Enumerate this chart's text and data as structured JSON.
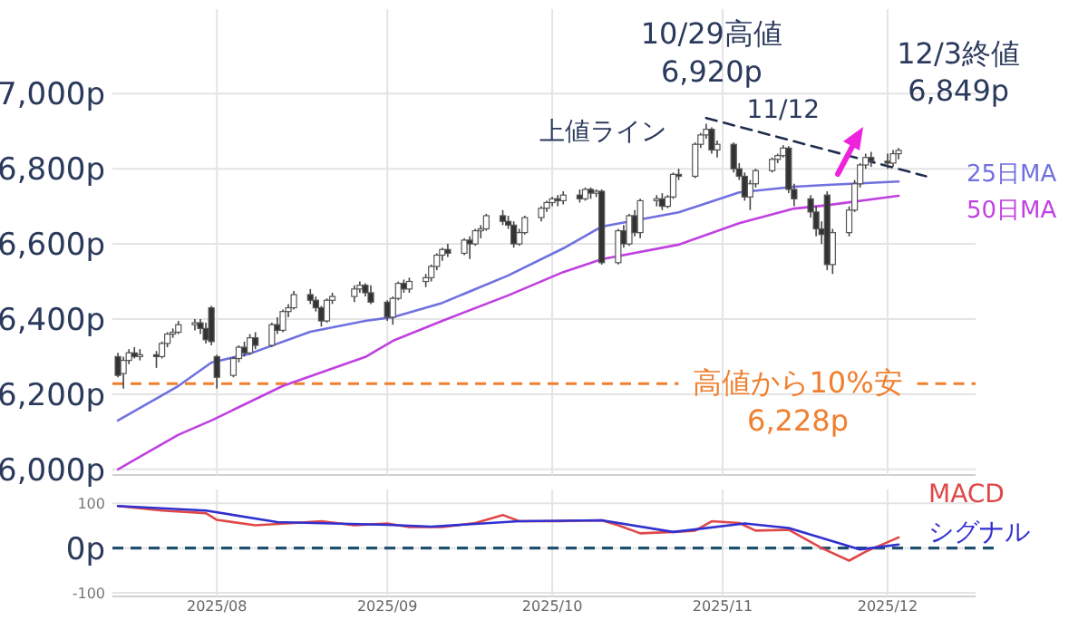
{
  "chart_data": [
    {
      "type": "candlestick",
      "x": [
        "2025-07-14",
        "2025-07-15",
        "2025-07-16",
        "2025-07-17",
        "2025-07-18",
        "2025-07-21",
        "2025-07-22",
        "2025-07-23",
        "2025-07-24",
        "2025-07-25",
        "2025-07-28",
        "2025-07-29",
        "2025-07-30",
        "2025-07-31",
        "2025-08-01",
        "2025-08-04",
        "2025-08-05",
        "2025-08-06",
        "2025-08-07",
        "2025-08-08",
        "2025-08-11",
        "2025-08-12",
        "2025-08-13",
        "2025-08-14",
        "2025-08-15",
        "2025-08-18",
        "2025-08-19",
        "2025-08-20",
        "2025-08-21",
        "2025-08-22",
        "2025-08-26",
        "2025-08-27",
        "2025-08-28",
        "2025-08-29",
        "2025-09-01",
        "2025-09-02",
        "2025-09-03",
        "2025-09-04",
        "2025-09-05",
        "2025-09-08",
        "2025-09-09",
        "2025-09-10",
        "2025-09-11",
        "2025-09-12",
        "2025-09-15",
        "2025-09-16",
        "2025-09-17",
        "2025-09-18",
        "2025-09-19",
        "2025-09-22",
        "2025-09-23",
        "2025-09-24",
        "2025-09-25",
        "2025-09-26",
        "2025-09-29",
        "2025-09-30",
        "2025-10-01",
        "2025-10-02",
        "2025-10-03",
        "2025-10-06",
        "2025-10-07",
        "2025-10-08",
        "2025-10-09",
        "2025-10-10",
        "2025-10-13",
        "2025-10-14",
        "2025-10-15",
        "2025-10-16",
        "2025-10-17",
        "2025-10-20",
        "2025-10-21",
        "2025-10-22",
        "2025-10-23",
        "2025-10-24",
        "2025-10-27",
        "2025-10-28",
        "2025-10-29",
        "2025-10-30",
        "2025-10-31",
        "2025-11-03",
        "2025-11-04",
        "2025-11-05",
        "2025-11-06",
        "2025-11-07",
        "2025-11-10",
        "2025-11-11",
        "2025-11-12",
        "2025-11-13",
        "2025-11-14",
        "2025-11-17",
        "2025-11-18",
        "2025-11-19",
        "2025-11-20",
        "2025-11-21",
        "2025-11-24",
        "2025-11-25",
        "2025-11-26",
        "2025-11-27",
        "2025-11-28",
        "2025-12-01",
        "2025-12-02",
        "2025-12-03"
      ],
      "ohlc": [
        [
          6300,
          6310,
          6245,
          6250
        ],
        [
          6255,
          6300,
          6215,
          6290
        ],
        [
          6290,
          6320,
          6280,
          6310
        ],
        [
          6310,
          6325,
          6295,
          6300
        ],
        [
          6300,
          6320,
          6290,
          6305
        ],
        [
          6305,
          6315,
          6270,
          6300
        ],
        [
          6300,
          6340,
          6295,
          6335
        ],
        [
          6335,
          6365,
          6325,
          6360
        ],
        [
          6360,
          6375,
          6350,
          6365
        ],
        [
          6365,
          6395,
          6360,
          6385
        ],
        [
          6385,
          6400,
          6370,
          6390
        ],
        [
          6390,
          6400,
          6360,
          6375
        ],
        [
          6375,
          6390,
          6335,
          6345
        ],
        [
          6430,
          6435,
          6330,
          6340
        ],
        [
          6300,
          6305,
          6215,
          6245
        ],
        [
          6250,
          6300,
          6245,
          6295
        ],
        [
          6295,
          6330,
          6285,
          6325
        ],
        [
          6325,
          6340,
          6300,
          6310
        ],
        [
          6310,
          6360,
          6305,
          6350
        ],
        [
          6350,
          6365,
          6320,
          6330
        ],
        [
          6330,
          6390,
          6325,
          6385
        ],
        [
          6385,
          6405,
          6360,
          6370
        ],
        [
          6370,
          6425,
          6365,
          6420
        ],
        [
          6420,
          6440,
          6405,
          6430
        ],
        [
          6430,
          6475,
          6425,
          6465
        ],
        [
          6465,
          6480,
          6440,
          6450
        ],
        [
          6450,
          6460,
          6420,
          6430
        ],
        [
          6430,
          6435,
          6380,
          6395
        ],
        [
          6395,
          6455,
          6390,
          6450
        ],
        [
          6450,
          6470,
          6440,
          6460
        ],
        [
          6460,
          6490,
          6445,
          6480
        ],
        [
          6480,
          6500,
          6470,
          6490
        ],
        [
          6490,
          6495,
          6460,
          6470
        ],
        [
          6470,
          6490,
          6440,
          6445
        ],
        [
          6445,
          6450,
          6395,
          6405
        ],
        [
          6405,
          6460,
          6385,
          6455
        ],
        [
          6455,
          6500,
          6450,
          6495
        ],
        [
          6495,
          6505,
          6470,
          6480
        ],
        [
          6480,
          6510,
          6470,
          6500
        ],
        [
          6500,
          6520,
          6485,
          6510
        ],
        [
          6510,
          6545,
          6500,
          6540
        ],
        [
          6540,
          6575,
          6530,
          6570
        ],
        [
          6570,
          6590,
          6555,
          6585
        ],
        [
          6585,
          6600,
          6565,
          6575
        ],
        [
          6575,
          6615,
          6570,
          6610
        ],
        [
          6610,
          6620,
          6560,
          6600
        ],
        [
          6600,
          6640,
          6595,
          6635
        ],
        [
          6635,
          6650,
          6615,
          6640
        ],
        [
          6640,
          6680,
          6635,
          6675
        ],
        [
          6675,
          6690,
          6650,
          6660
        ],
        [
          6660,
          6675,
          6640,
          6650
        ],
        [
          6650,
          6660,
          6590,
          6600
        ],
        [
          6600,
          6640,
          6595,
          6630
        ],
        [
          6630,
          6675,
          6625,
          6670
        ],
        [
          6670,
          6700,
          6660,
          6695
        ],
        [
          6695,
          6715,
          6685,
          6710
        ],
        [
          6710,
          6725,
          6700,
          6720
        ],
        [
          6720,
          6730,
          6700,
          6715
        ],
        [
          6715,
          6740,
          6705,
          6730
        ],
        [
          6730,
          6745,
          6710,
          6720
        ],
        [
          6720,
          6750,
          6715,
          6745
        ],
        [
          6745,
          6750,
          6720,
          6735
        ],
        [
          6735,
          6745,
          6725,
          6740
        ],
        [
          6740,
          6745,
          6545,
          6550
        ],
        [
          6550,
          6640,
          6545,
          6635
        ],
        [
          6635,
          6650,
          6590,
          6600
        ],
        [
          6600,
          6680,
          6595,
          6675
        ],
        [
          6675,
          6690,
          6620,
          6630
        ],
        [
          6630,
          6720,
          6615,
          6715
        ],
        [
          6715,
          6730,
          6700,
          6720
        ],
        [
          6720,
          6735,
          6690,
          6700
        ],
        [
          6700,
          6730,
          6695,
          6725
        ],
        [
          6725,
          6790,
          6720,
          6785
        ],
        [
          6785,
          6800,
          6770,
          6780
        ],
        [
          6780,
          6870,
          6775,
          6865
        ],
        [
          6865,
          6895,
          6855,
          6890
        ],
        [
          6890,
          6920,
          6880,
          6905
        ],
        [
          6905,
          6910,
          6840,
          6850
        ],
        [
          6850,
          6875,
          6830,
          6865
        ],
        [
          6865,
          6870,
          6790,
          6800
        ],
        [
          6800,
          6815,
          6770,
          6780
        ],
        [
          6780,
          6790,
          6715,
          6725
        ],
        [
          6725,
          6770,
          6690,
          6760
        ],
        [
          6760,
          6800,
          6750,
          6795
        ],
        [
          6795,
          6830,
          6790,
          6825
        ],
        [
          6825,
          6840,
          6815,
          6835
        ],
        [
          6835,
          6863,
          6830,
          6855
        ],
        [
          6855,
          6860,
          6735,
          6745
        ],
        [
          6745,
          6760,
          6700,
          6720
        ],
        [
          6720,
          6730,
          6670,
          6685
        ],
        [
          6685,
          6700,
          6620,
          6640
        ],
        [
          6640,
          6660,
          6600,
          6625
        ],
        [
          6730,
          6740,
          6530,
          6545
        ],
        [
          6545,
          6640,
          6520,
          6630
        ],
        [
          6630,
          6700,
          6620,
          6690
        ],
        [
          6690,
          6770,
          6685,
          6760
        ],
        [
          6760,
          6815,
          6750,
          6810
        ],
        [
          6810,
          6840,
          6800,
          6830
        ],
        [
          6830,
          6845,
          6805,
          6820
        ],
        [
          6820,
          6840,
          6800,
          6815
        ],
        [
          6815,
          6850,
          6805,
          6840
        ],
        [
          6840,
          6855,
          6825,
          6849
        ]
      ],
      "series": [
        {
          "name": "25日MA",
          "type": "line",
          "color": "#7070e0",
          "x": [
            "2025-07-14",
            "2025-07-25",
            "2025-07-31",
            "2025-08-07",
            "2025-08-18",
            "2025-08-28",
            "2025-09-02",
            "2025-09-11",
            "2025-09-23",
            "2025-10-03",
            "2025-10-10",
            "2025-10-24",
            "2025-11-04",
            "2025-11-14",
            "2025-11-20",
            "2025-12-03"
          ],
          "values": [
            6130,
            6222,
            6284,
            6308,
            6366,
            6395,
            6405,
            6443,
            6516,
            6588,
            6646,
            6684,
            6737,
            6752,
            6757,
            6766
          ]
        },
        {
          "name": "50日MA",
          "type": "line",
          "color": "#c040e0",
          "x": [
            "2025-07-14",
            "2025-07-25",
            "2025-07-31",
            "2025-08-13",
            "2025-08-28",
            "2025-09-02",
            "2025-09-11",
            "2025-09-23",
            "2025-10-03",
            "2025-10-10",
            "2025-10-24",
            "2025-11-04",
            "2025-11-14",
            "2025-11-20",
            "2025-12-03"
          ],
          "values": [
            6000,
            6092,
            6130,
            6222,
            6299,
            6342,
            6395,
            6463,
            6525,
            6559,
            6598,
            6655,
            6694,
            6703,
            6728
          ]
        },
        {
          "type": "line",
          "color": "#1f2d4d",
          "line_style": "dashed",
          "x": [
            "2025-10-29",
            "2025-12-08"
          ],
          "values": [
            6935,
            6780
          ]
        }
      ],
      "xlim": [
        "2025-07-13",
        "2025-12-17"
      ],
      "xticks": [
        {
          "value": "2025-08-01",
          "label": null
        },
        {
          "value": "2025-09-01",
          "label": null
        },
        {
          "value": "2025-10-01",
          "label": null
        },
        {
          "value": "2025-11-01",
          "label": null
        },
        {
          "value": "2025-12-01",
          "label": null
        }
      ],
      "ylim": [
        5985,
        7225
      ],
      "yticks": [
        {
          "value": 6000,
          "label": "6,000p"
        },
        {
          "value": 6200,
          "label": "6,200p"
        },
        {
          "value": 6400,
          "label": "6,400p"
        },
        {
          "value": 6600,
          "label": "6,600p"
        },
        {
          "value": 6800,
          "label": "6,800p"
        },
        {
          "value": 7000,
          "label": "7,000p"
        }
      ],
      "tick_labels": "y",
      "grid": true,
      "ref_lines": [
        {
          "axis": "y",
          "value": 6228,
          "label": "高値から10%安\n6,228p",
          "color": "#f08030",
          "line_style": "dashed"
        }
      ],
      "annotations": [
        {
          "text": "上値ライン",
          "x": "2025-10-29",
          "y": 6920
        },
        {
          "text": "10/29高値\n6,920p",
          "x": "2025-10-29",
          "y": 6920
        },
        {
          "text": "11/12",
          "x": "2025-11-12",
          "y": 6863
        },
        {
          "text": "12/3終値\n6,849p",
          "x": "2025-12-03",
          "y": 6849
        }
      ]
    },
    {
      "type": "line",
      "series": [
        {
          "name": "MACD",
          "color": "#e04848",
          "x": [
            "2025-07-14",
            "2025-07-22",
            "2025-07-30",
            "2025-08-01",
            "2025-08-08",
            "2025-08-15",
            "2025-08-20",
            "2025-08-26",
            "2025-09-01",
            "2025-09-05",
            "2025-09-11",
            "2025-09-17",
            "2025-09-22",
            "2025-09-25",
            "2025-10-02",
            "2025-10-10",
            "2025-10-13",
            "2025-10-17",
            "2025-10-23",
            "2025-10-27",
            "2025-10-30",
            "2025-11-04",
            "2025-11-07",
            "2025-11-13",
            "2025-11-19",
            "2025-11-24",
            "2025-11-27",
            "2025-12-03"
          ],
          "values": [
            94,
            84,
            78,
            63,
            51,
            56,
            60,
            51,
            55,
            47,
            47,
            56,
            74,
            60,
            60,
            62,
            51,
            33,
            36,
            39,
            60,
            56,
            39,
            41,
            0,
            -28,
            -8,
            24
          ]
        },
        {
          "name": "シグナル",
          "color": "#3030d0",
          "x": [
            "2025-07-14",
            "2025-07-30",
            "2025-08-12",
            "2025-09-01",
            "2025-09-09",
            "2025-09-25",
            "2025-10-10",
            "2025-10-23",
            "2025-11-05",
            "2025-11-13",
            "2025-11-26",
            "2025-12-03"
          ],
          "values": [
            94,
            84,
            58,
            52,
            48,
            60,
            62,
            36,
            55,
            45,
            -3,
            8
          ]
        }
      ],
      "xlim": [
        "2025-07-13",
        "2025-12-17"
      ],
      "xticks": [
        {
          "value": "2025-08-01",
          "label": "2025/08"
        },
        {
          "value": "2025-09-01",
          "label": "2025/09"
        },
        {
          "value": "2025-10-01",
          "label": "2025/10"
        },
        {
          "value": "2025-11-01",
          "label": "2025/11"
        },
        {
          "value": "2025-12-01",
          "label": "2025/12"
        }
      ],
      "ylim": [
        -108,
        131
      ],
      "yticks": [
        -100,
        {
          "value": 0,
          "label": null
        },
        100
      ],
      "grid": true,
      "ref_lines": [
        {
          "axis": "y",
          "value": 0,
          "label": "0p",
          "color": "#205070",
          "line_style": "dashed"
        }
      ]
    }
  ]
}
